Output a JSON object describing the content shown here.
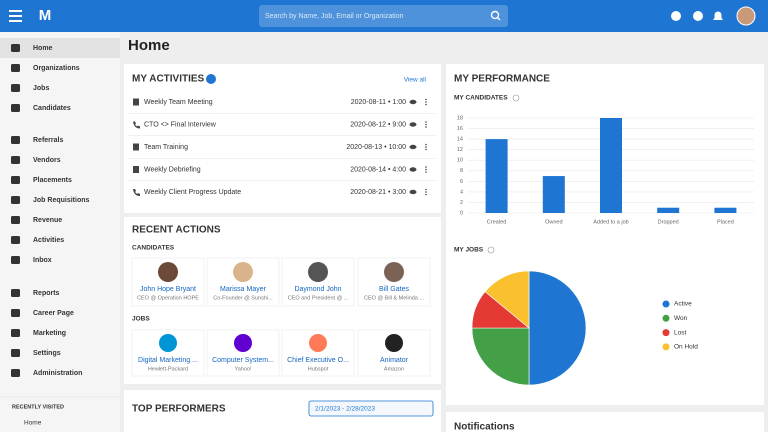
{
  "header": {
    "logo": "M",
    "search_placeholder": "Search by Name, Job, Email or Organization"
  },
  "sidebar": {
    "items": [
      "Home",
      "Organizations",
      "Jobs",
      "Candidates",
      "Referrals",
      "Vendors",
      "Placements",
      "Job Requisitions",
      "Revenue",
      "Activities",
      "Inbox",
      "Reports",
      "Career Page",
      "Marketing",
      "Settings",
      "Administration"
    ],
    "recently_visited_title": "RECENTLY VISITED",
    "recent": [
      "Home"
    ]
  },
  "page_title": "Home",
  "activities": {
    "title": "MY ACTIVITIES",
    "view_all": "View all",
    "rows": [
      {
        "icon": "note",
        "label": "Weekly Team Meeting",
        "datetime": "2020-08-11 • 1:00"
      },
      {
        "icon": "phone",
        "label": "CTO <> Final Interview",
        "datetime": "2020-08-12 • 9:00"
      },
      {
        "icon": "note",
        "label": "Team Training",
        "datetime": "2020-08-13 • 10:00"
      },
      {
        "icon": "note",
        "label": "Weekly Debriefing",
        "datetime": "2020-08-14 • 4:00"
      },
      {
        "icon": "phone",
        "label": "Weekly Client Progress Update",
        "datetime": "2020-08-21 • 3:00"
      }
    ]
  },
  "recent_actions": {
    "title": "RECENT ACTIONS",
    "candidates_title": "CANDIDATES",
    "candidates": [
      {
        "name": "John Hope Bryant",
        "subtitle": "CEO @ Operation HOPE"
      },
      {
        "name": "Marissa Mayer",
        "subtitle": "Co-Founder @ Sunshi..."
      },
      {
        "name": "Daymond John",
        "subtitle": "CEO and President @ ..."
      },
      {
        "name": "Bill Gates",
        "subtitle": "CEO @ Bill & Melinda ..."
      }
    ],
    "jobs_title": "JOBS",
    "jobs": [
      {
        "title": "Digital Marketing ...",
        "company": "Hewlett-Packard"
      },
      {
        "title": "Computer System...",
        "company": "Yahoo!"
      },
      {
        "title": "Chief Executive O...",
        "company": "Hubspot"
      },
      {
        "title": "Animator",
        "company": "Amazon"
      }
    ]
  },
  "top_performers": {
    "title": "TOP PERFORMERS",
    "date_range": "2/1/2023 - 2/28/2023"
  },
  "performance": {
    "title": "MY PERFORMANCE"
  },
  "chart_data": [
    {
      "type": "bar",
      "title": "MY CANDIDATES",
      "categories": [
        "Created",
        "Owned",
        "Added to a job",
        "Dropped",
        "Placed"
      ],
      "values": [
        14,
        7,
        18,
        1,
        1
      ],
      "color": "#1e76d2",
      "ylim": [
        0,
        18
      ],
      "yticks": [
        0,
        2,
        4,
        6,
        8,
        10,
        12,
        14,
        16,
        18
      ],
      "grid": true
    },
    {
      "type": "pie",
      "title": "MY JOBS",
      "categories": [
        "Active",
        "Won",
        "Lost",
        "On Hold"
      ],
      "values": [
        50,
        25,
        11,
        14
      ],
      "colors": [
        "#1e76d2",
        "#43a047",
        "#e53935",
        "#fbc02d"
      ],
      "legend": "right"
    }
  ],
  "notifications": {
    "title": "Notifications"
  }
}
